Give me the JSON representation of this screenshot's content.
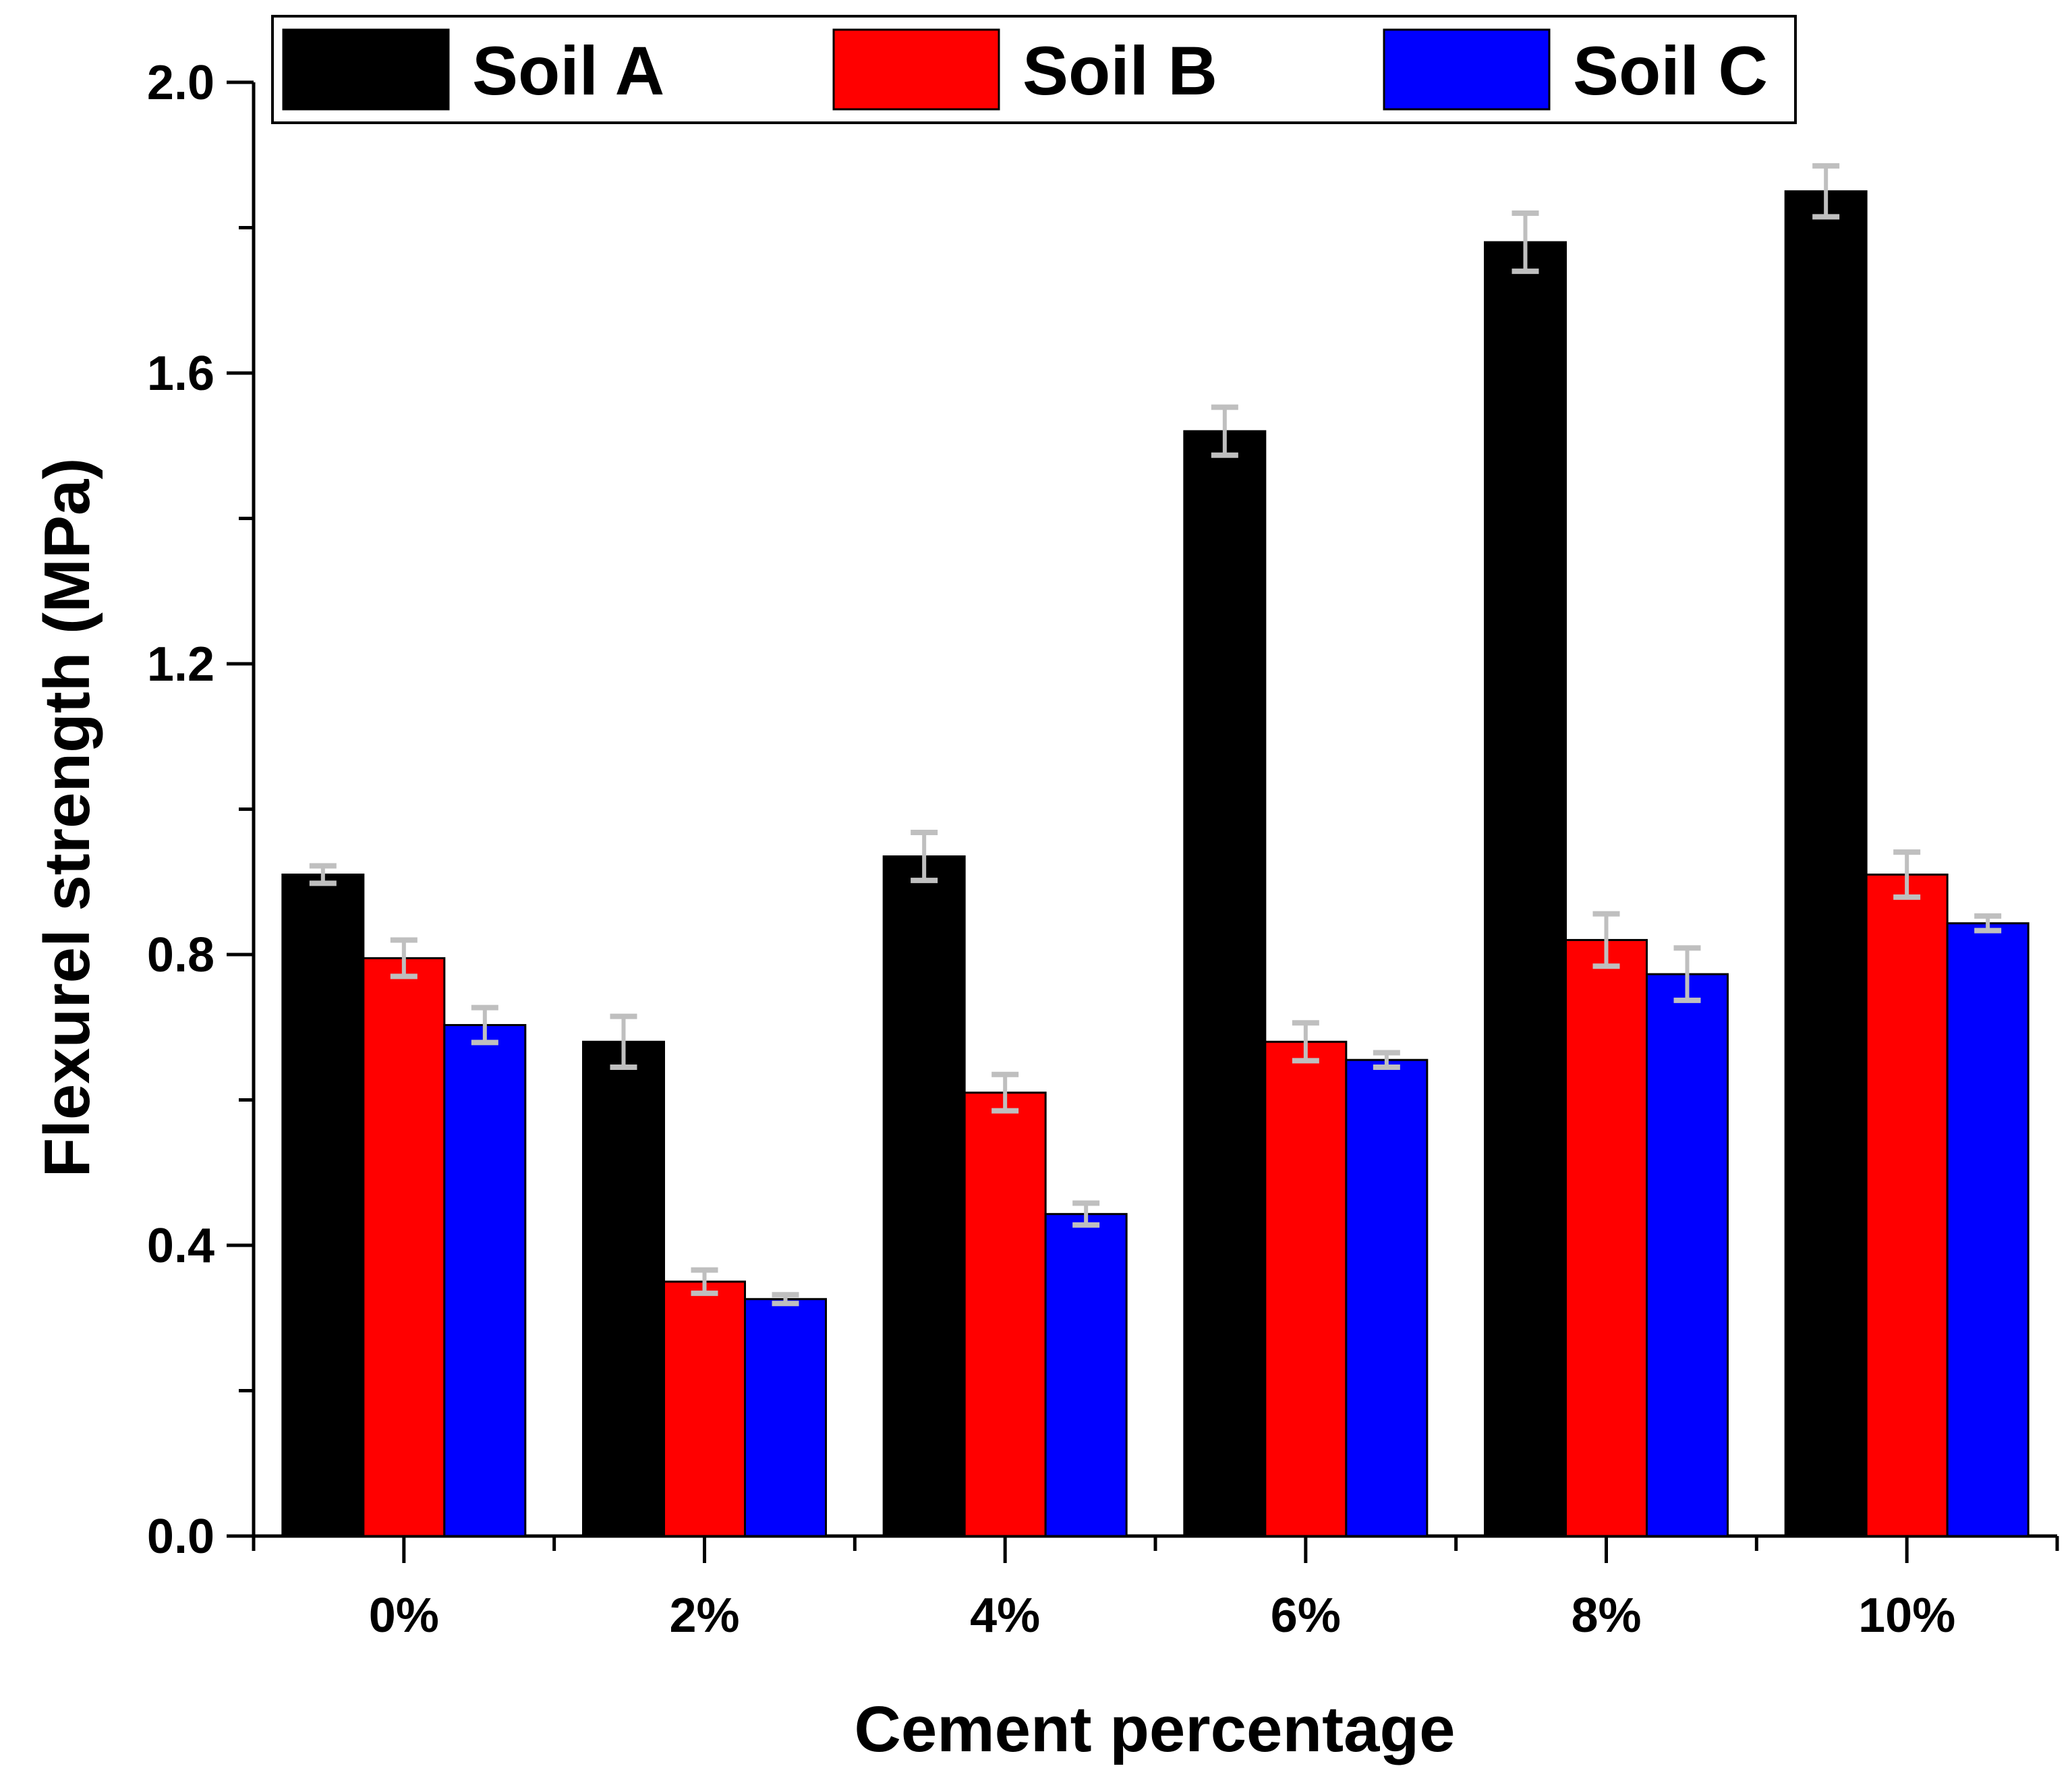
{
  "chart_data": {
    "type": "bar",
    "title": "",
    "xlabel": "Cement percentage",
    "ylabel": "Flexurel strength (MPa)",
    "ylim": [
      0,
      2.0
    ],
    "yticks": [
      0.0,
      0.4,
      0.8,
      1.2,
      1.6,
      2.0
    ],
    "ytick_labels": [
      "0.0",
      "0.4",
      "0.8",
      "1.2",
      "1.6",
      "2.0"
    ],
    "categories": [
      "0%",
      "2%",
      "4%",
      "6%",
      "8%",
      "10%"
    ],
    "legend_position": "top",
    "series": [
      {
        "name": "Soil A",
        "color": "#000000",
        "values": [
          0.91,
          0.68,
          0.935,
          1.52,
          1.78,
          1.85
        ],
        "errors": [
          0.012,
          0.035,
          0.033,
          0.033,
          0.04,
          0.035
        ]
      },
      {
        "name": "Soil B",
        "color": "#ff0000",
        "values": [
          0.795,
          0.35,
          0.61,
          0.68,
          0.82,
          0.91
        ],
        "errors": [
          0.025,
          0.016,
          0.025,
          0.026,
          0.036,
          0.031
        ]
      },
      {
        "name": "Soil C",
        "color": "#0000ff",
        "values": [
          0.703,
          0.326,
          0.443,
          0.655,
          0.773,
          0.843
        ],
        "errors": [
          0.024,
          0.006,
          0.015,
          0.01,
          0.036,
          0.01
        ]
      }
    ],
    "error_bar_color": "#bfbfbf"
  }
}
